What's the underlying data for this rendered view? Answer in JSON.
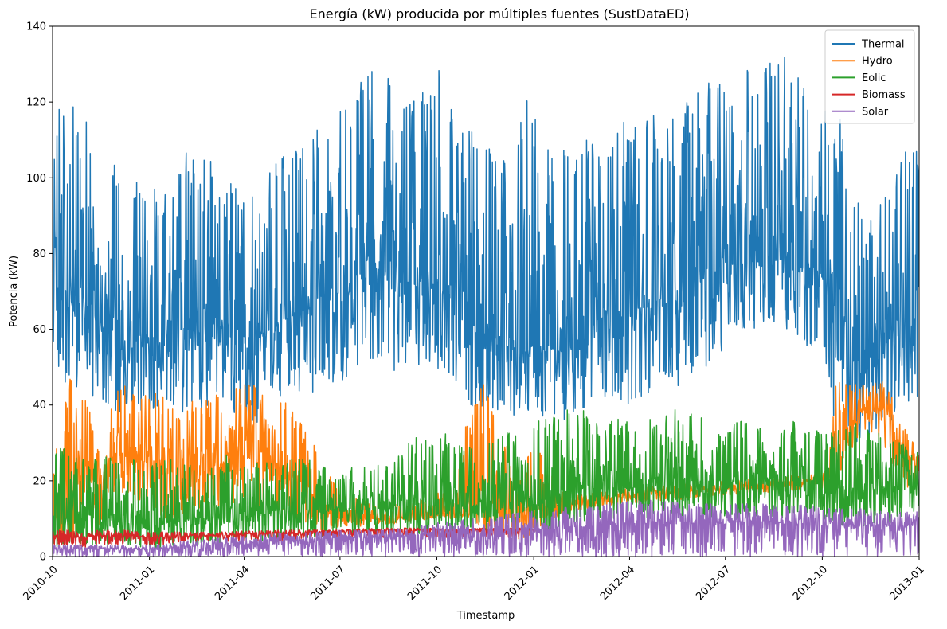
{
  "chart_data": {
    "type": "line",
    "title": "Energía (kW) producida por múltiples fuentes (SustDataED)",
    "xlabel": "Timestamp",
    "ylabel": "Potencia (kW)",
    "xlim": [
      "2010-10-01",
      "2013-01-01"
    ],
    "ylim": [
      0,
      140
    ],
    "x_ticks": [
      "2010-10",
      "2011-01",
      "2011-04",
      "2011-07",
      "2011-10",
      "2012-01",
      "2012-04",
      "2012-07",
      "2012-10",
      "2013-01"
    ],
    "y_ticks": [
      0,
      20,
      40,
      60,
      80,
      100,
      120,
      140
    ],
    "grid": false,
    "legend_position": "top-right",
    "series": [
      {
        "name": "Thermal",
        "color": "#1f77b4",
        "x": [
          "2010-10-01",
          "2010-10-15",
          "2010-11-01",
          "2010-11-15",
          "2010-12-01",
          "2010-12-15",
          "2011-01-01",
          "2011-01-15",
          "2011-02-01",
          "2011-02-15",
          "2011-03-01",
          "2011-03-15",
          "2011-04-01",
          "2011-04-15",
          "2011-05-01",
          "2011-05-15",
          "2011-06-01",
          "2011-06-15",
          "2011-07-01",
          "2011-07-15",
          "2011-08-01",
          "2011-08-15",
          "2011-09-01",
          "2011-09-15",
          "2011-10-01",
          "2011-10-15",
          "2011-11-01",
          "2011-11-15",
          "2011-12-01",
          "2011-12-15",
          "2012-01-01",
          "2012-01-15",
          "2012-02-01",
          "2012-02-15",
          "2012-03-01",
          "2012-03-15",
          "2012-04-01",
          "2012-04-15",
          "2012-05-01",
          "2012-05-15",
          "2012-06-01",
          "2012-06-15",
          "2012-07-01",
          "2012-07-15",
          "2012-08-01",
          "2012-08-15",
          "2012-09-01",
          "2012-09-15",
          "2012-10-01",
          "2012-10-15",
          "2012-11-01",
          "2012-11-15",
          "2012-12-01",
          "2012-12-15",
          "2013-01-01"
        ],
        "min": [
          52,
          45,
          44,
          40,
          35,
          38,
          38,
          37,
          36,
          38,
          40,
          38,
          35,
          35,
          42,
          42,
          42,
          44,
          45,
          48,
          50,
          48,
          48,
          50,
          50,
          45,
          40,
          38,
          38,
          36,
          38,
          36,
          35,
          38,
          40,
          42,
          40,
          42,
          45,
          44,
          48,
          50,
          55,
          60,
          60,
          62,
          58,
          55,
          55,
          30,
          28,
          32,
          35,
          38,
          40
        ],
        "mean": [
          72,
          70,
          68,
          62,
          55,
          55,
          58,
          58,
          60,
          60,
          62,
          60,
          58,
          58,
          62,
          64,
          66,
          68,
          70,
          74,
          76,
          76,
          74,
          72,
          72,
          68,
          62,
          58,
          56,
          55,
          56,
          55,
          55,
          58,
          62,
          64,
          64,
          66,
          68,
          70,
          72,
          74,
          76,
          78,
          80,
          80,
          78,
          76,
          75,
          60,
          52,
          52,
          56,
          62,
          65
        ],
        "max": [
          120,
          122,
          116,
          112,
          108,
          100,
          98,
          100,
          108,
          104,
          106,
          100,
          98,
          100,
          104,
          108,
          112,
          116,
          120,
          126,
          130,
          128,
          126,
          122,
          132,
          120,
          114,
          110,
          108,
          112,
          128,
          110,
          108,
          110,
          110,
          114,
          115,
          116,
          118,
          118,
          122,
          126,
          126,
          130,
          128,
          132,
          132,
          128,
          128,
          124,
          100,
          92,
          95,
          108,
          108
        ]
      },
      {
        "name": "Hydro",
        "color": "#ff7f0e",
        "x": [
          "2010-10-01",
          "2010-10-15",
          "2010-11-01",
          "2010-11-15",
          "2010-12-01",
          "2010-12-15",
          "2011-01-01",
          "2011-01-15",
          "2011-02-01",
          "2011-02-15",
          "2011-03-01",
          "2011-03-15",
          "2011-04-01",
          "2011-04-15",
          "2011-05-01",
          "2011-05-15",
          "2011-06-01",
          "2011-06-15",
          "2011-07-01",
          "2011-08-01",
          "2011-09-01",
          "2011-10-01",
          "2011-11-01",
          "2011-11-15",
          "2011-12-01",
          "2011-12-15",
          "2012-01-01",
          "2012-02-01",
          "2012-04-01",
          "2012-07-01",
          "2012-10-01",
          "2012-10-15",
          "2012-11-01",
          "2012-11-15",
          "2012-12-01",
          "2012-12-15",
          "2013-01-01"
        ],
        "min": [
          4,
          4,
          6,
          8,
          18,
          15,
          12,
          10,
          10,
          12,
          12,
          12,
          14,
          12,
          12,
          10,
          8,
          6,
          8,
          8,
          9,
          10,
          10,
          6,
          5,
          4,
          6,
          12,
          14,
          16,
          18,
          20,
          30,
          32,
          28,
          18,
          18
        ],
        "mean": [
          10,
          14,
          22,
          18,
          28,
          26,
          25,
          22,
          22,
          24,
          24,
          26,
          30,
          25,
          24,
          22,
          18,
          12,
          10,
          10,
          10,
          11,
          12,
          16,
          12,
          10,
          12,
          14,
          16,
          18,
          20,
          22,
          36,
          40,
          38,
          26,
          26
        ],
        "max": [
          22,
          48,
          46,
          26,
          46,
          46,
          45,
          42,
          40,
          42,
          44,
          44,
          46,
          45,
          44,
          40,
          34,
          24,
          18,
          14,
          14,
          16,
          42,
          46,
          30,
          28,
          30,
          16,
          18,
          20,
          22,
          48,
          46,
          46,
          47,
          35,
          28
        ]
      },
      {
        "name": "Eolic",
        "color": "#2ca02c",
        "x": [
          "2010-10-01",
          "2010-10-15",
          "2010-11-01",
          "2010-11-15",
          "2010-12-01",
          "2010-12-15",
          "2011-01-01",
          "2011-01-15",
          "2011-02-01",
          "2011-02-15",
          "2011-03-01",
          "2011-03-15",
          "2011-04-01",
          "2011-04-15",
          "2011-05-01",
          "2011-05-15",
          "2011-06-01",
          "2011-06-15",
          "2011-07-01",
          "2011-07-15",
          "2011-08-01",
          "2011-08-15",
          "2011-09-01",
          "2011-09-15",
          "2011-10-01",
          "2011-10-15",
          "2011-11-01",
          "2011-11-15",
          "2011-12-01",
          "2011-12-15",
          "2012-01-01",
          "2012-01-15",
          "2012-02-01",
          "2012-02-15",
          "2012-03-01",
          "2012-03-15",
          "2012-04-01",
          "2012-04-15",
          "2012-05-01",
          "2012-05-15",
          "2012-06-01",
          "2012-06-15",
          "2012-07-01",
          "2012-07-15",
          "2012-08-01",
          "2012-08-15",
          "2012-09-01",
          "2012-09-15",
          "2012-10-01",
          "2012-10-15",
          "2012-11-01",
          "2012-11-15",
          "2012-12-01",
          "2012-12-15",
          "2013-01-01"
        ],
        "min": [
          1,
          3,
          3,
          3,
          3,
          3,
          2,
          2,
          3,
          3,
          3,
          3,
          4,
          4,
          4,
          4,
          5,
          5,
          6,
          6,
          6,
          6,
          6,
          6,
          7,
          7,
          6,
          6,
          6,
          6,
          6,
          6,
          8,
          8,
          10,
          10,
          10,
          10,
          10,
          10,
          10,
          10,
          10,
          10,
          10,
          10,
          10,
          10,
          10,
          8,
          8,
          8,
          8,
          10,
          12
        ],
        "mean": [
          8,
          10,
          10,
          9,
          9,
          9,
          8,
          9,
          10,
          10,
          10,
          11,
          12,
          12,
          12,
          12,
          12,
          12,
          12,
          13,
          13,
          13,
          14,
          14,
          15,
          15,
          14,
          14,
          14,
          15,
          15,
          16,
          17,
          18,
          18,
          18,
          18,
          19,
          19,
          20,
          20,
          20,
          20,
          20,
          20,
          20,
          20,
          20,
          20,
          18,
          18,
          18,
          18,
          18,
          18
        ],
        "max": [
          28,
          30,
          26,
          26,
          28,
          26,
          24,
          26,
          25,
          26,
          26,
          28,
          25,
          26,
          24,
          26,
          26,
          24,
          22,
          24,
          24,
          26,
          30,
          32,
          34,
          32,
          30,
          30,
          32,
          34,
          36,
          38,
          40,
          40,
          36,
          38,
          36,
          38,
          36,
          40,
          38,
          36,
          34,
          36,
          34,
          34,
          36,
          34,
          35,
          34,
          36,
          34,
          32,
          30,
          28
        ]
      },
      {
        "name": "Biomass",
        "color": "#d62728",
        "x": [
          "2010-10-01",
          "2010-10-15",
          "2010-11-01",
          "2010-11-15",
          "2010-12-01",
          "2010-12-15",
          "2011-01-01",
          "2011-01-15",
          "2011-02-01",
          "2011-02-15",
          "2011-03-01",
          "2011-03-15",
          "2011-04-01",
          "2011-04-15",
          "2011-05-01",
          "2011-05-15",
          "2011-06-01",
          "2011-06-15",
          "2011-07-01",
          "2011-08-01",
          "2011-09-01",
          "2011-10-01",
          "2011-11-01",
          "2011-12-01",
          "2012-01-01"
        ],
        "min": [
          3,
          3,
          2,
          3,
          3,
          3,
          3,
          3,
          4,
          4,
          4,
          4,
          4,
          4,
          4,
          4,
          5,
          5,
          5,
          5,
          5,
          5,
          5,
          5,
          5
        ],
        "mean": [
          5.5,
          5.5,
          5,
          5.5,
          5.5,
          5.5,
          5,
          5,
          5.5,
          5.5,
          5.5,
          5.5,
          6,
          6,
          6,
          6,
          6.3,
          6.5,
          6.5,
          6.8,
          7,
          7,
          7,
          7,
          7
        ],
        "max": [
          7,
          7,
          6.5,
          7,
          7,
          7,
          6.5,
          6.5,
          6.5,
          6.5,
          6.5,
          6.5,
          6.8,
          6.8,
          7,
          7,
          7,
          7,
          7,
          7.5,
          7.5,
          7.5,
          7.5,
          7.5,
          7.5
        ]
      },
      {
        "name": "Solar",
        "color": "#9467bd",
        "x": [
          "2010-10-01",
          "2010-11-01",
          "2010-12-01",
          "2011-01-01",
          "2011-02-01",
          "2011-03-01",
          "2011-04-01",
          "2011-05-01",
          "2011-06-01",
          "2011-07-01",
          "2011-08-01",
          "2011-09-01",
          "2011-10-01",
          "2011-11-01",
          "2011-12-01",
          "2012-01-01",
          "2012-02-01",
          "2012-03-01",
          "2012-04-01",
          "2012-05-01",
          "2012-06-01",
          "2012-07-01",
          "2012-08-01",
          "2012-09-01",
          "2012-10-01",
          "2012-11-01",
          "2012-12-01",
          "2013-01-01"
        ],
        "min": [
          0,
          0,
          0,
          0,
          0,
          0,
          0,
          0,
          0,
          0,
          0,
          0,
          0,
          0,
          0,
          0,
          0,
          0,
          0,
          0,
          0,
          0,
          0,
          0,
          0,
          0,
          0,
          0
        ],
        "mean": [
          2,
          2,
          2,
          2,
          2.5,
          3,
          3.5,
          4,
          4.5,
          5,
          5,
          5.5,
          6,
          6,
          6.5,
          7,
          7.5,
          8,
          9,
          9,
          9,
          9,
          9,
          9,
          9,
          8,
          8,
          8
        ],
        "max": [
          3,
          3,
          3,
          3,
          4,
          5,
          5.5,
          6,
          6.5,
          7,
          7,
          7.5,
          9,
          10,
          11,
          12,
          13,
          14,
          15,
          15,
          14,
          14,
          14,
          14,
          13,
          13,
          12,
          12
        ]
      }
    ]
  }
}
